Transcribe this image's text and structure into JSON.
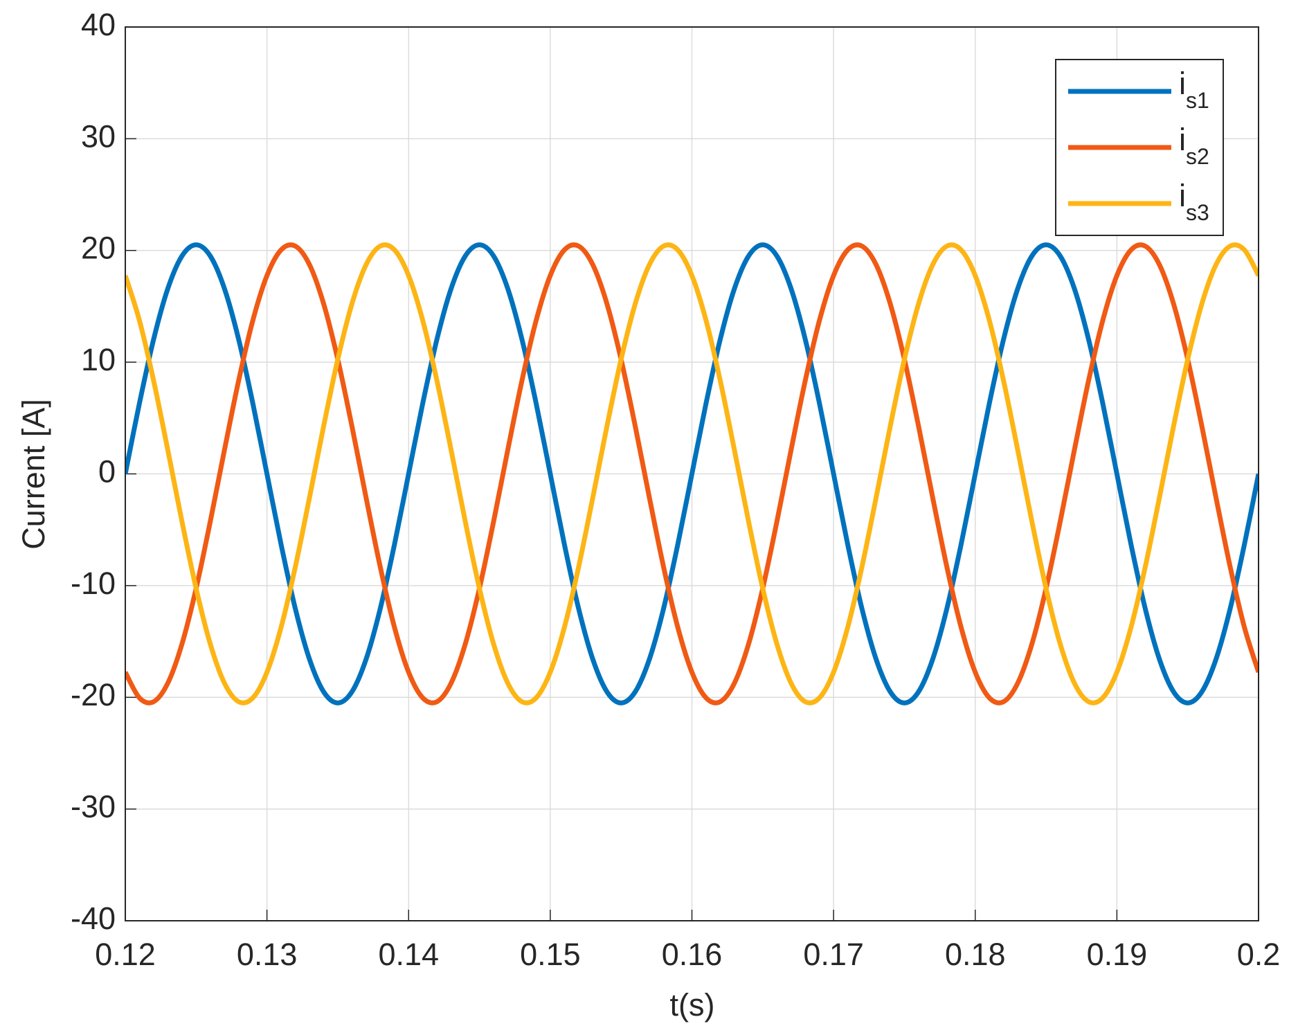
{
  "chart_data": {
    "type": "line",
    "xlabel": "t(s)",
    "ylabel": "Current [A]",
    "xlim": [
      0.12,
      0.2
    ],
    "ylim": [
      -40,
      40
    ],
    "xticks": [
      0.12,
      0.13,
      0.14,
      0.15,
      0.16,
      0.17,
      0.18,
      0.19,
      0.2
    ],
    "yticks": [
      -40,
      -30,
      -20,
      -10,
      0,
      10,
      20,
      30,
      40
    ],
    "grid": true,
    "legend": "top-right",
    "x": [
      0.12,
      0.121,
      0.122,
      0.123,
      0.124,
      0.125,
      0.126,
      0.127,
      0.128,
      0.129,
      0.13,
      0.131,
      0.132,
      0.133,
      0.134,
      0.135,
      0.136,
      0.137,
      0.138,
      0.139,
      0.14,
      0.141,
      0.142,
      0.143,
      0.144,
      0.145,
      0.146,
      0.147,
      0.148,
      0.149,
      0.15,
      0.151,
      0.152,
      0.153,
      0.154,
      0.155,
      0.156,
      0.157,
      0.158,
      0.159,
      0.16,
      0.161,
      0.162,
      0.163,
      0.164,
      0.165,
      0.166,
      0.167,
      0.168,
      0.169,
      0.17,
      0.171,
      0.172,
      0.173,
      0.174,
      0.175,
      0.176,
      0.177,
      0.178,
      0.179,
      0.18,
      0.181,
      0.182,
      0.183,
      0.184,
      0.185,
      0.186,
      0.187,
      0.188,
      0.189,
      0.19,
      0.191,
      0.192,
      0.193,
      0.194,
      0.195,
      0.196,
      0.197,
      0.198,
      0.199,
      0.2
    ],
    "series": [
      {
        "name": "is1",
        "color": "#0072bd",
        "values": [
          0,
          6.33,
          12.05,
          16.58,
          19.5,
          20.5,
          19.5,
          16.58,
          12.05,
          6.33,
          0,
          -6.33,
          -12.05,
          -16.58,
          -19.5,
          -20.5,
          -19.5,
          -16.58,
          -12.05,
          -6.33,
          0,
          6.33,
          12.05,
          16.58,
          19.5,
          20.5,
          19.5,
          16.58,
          12.05,
          6.33,
          0,
          -6.33,
          -12.05,
          -16.58,
          -19.5,
          -20.5,
          -19.5,
          -16.58,
          -12.05,
          -6.33,
          0,
          6.33,
          12.05,
          16.58,
          19.5,
          20.5,
          19.5,
          16.58,
          12.05,
          6.33,
          0,
          -6.33,
          -12.05,
          -16.58,
          -19.5,
          -20.5,
          -19.5,
          -16.58,
          -12.05,
          -6.33,
          0,
          6.33,
          12.05,
          16.58,
          19.5,
          20.5,
          19.5,
          16.58,
          12.05,
          6.33,
          0,
          -6.33,
          -12.05,
          -16.58,
          -19.5,
          -20.5,
          -19.5,
          -16.58,
          -12.05,
          -6.33,
          0
        ]
      },
      {
        "name": "is2",
        "color": "#f05a14",
        "values": [
          -17.75,
          -20.05,
          -20.39,
          -18.73,
          -15.23,
          -10.25,
          -4.26,
          2.14,
          8.34,
          13.72,
          17.75,
          20.05,
          20.39,
          18.73,
          15.23,
          10.25,
          4.26,
          -2.14,
          -8.34,
          -13.72,
          -17.75,
          -20.05,
          -20.39,
          -18.73,
          -15.23,
          -10.25,
          -4.26,
          2.14,
          8.34,
          13.72,
          17.75,
          20.05,
          20.39,
          18.73,
          15.23,
          10.25,
          4.26,
          -2.14,
          -8.34,
          -13.72,
          -17.75,
          -20.05,
          -20.39,
          -18.73,
          -15.23,
          -10.25,
          -4.26,
          2.14,
          8.34,
          13.72,
          17.75,
          20.05,
          20.39,
          18.73,
          15.23,
          10.25,
          4.26,
          -2.14,
          -8.34,
          -13.72,
          -17.75,
          -20.05,
          -20.39,
          -18.73,
          -15.23,
          -10.25,
          -4.26,
          2.14,
          8.34,
          13.72,
          17.75,
          20.05,
          20.39,
          18.73,
          15.23,
          10.25,
          4.26,
          -2.14,
          -8.34,
          -13.72,
          -17.75
        ]
      },
      {
        "name": "is3",
        "color": "#fdb515",
        "values": [
          17.75,
          13.72,
          8.34,
          2.14,
          -4.26,
          -10.25,
          -15.23,
          -18.73,
          -20.39,
          -20.05,
          -17.75,
          -13.72,
          -8.34,
          -2.14,
          4.26,
          10.25,
          15.23,
          18.73,
          20.39,
          20.05,
          17.75,
          13.72,
          8.34,
          2.14,
          -4.26,
          -10.25,
          -15.23,
          -18.73,
          -20.39,
          -20.05,
          -17.75,
          -13.72,
          -8.34,
          -2.14,
          4.26,
          10.25,
          15.23,
          18.73,
          20.39,
          20.05,
          17.75,
          13.72,
          8.34,
          2.14,
          -4.26,
          -10.25,
          -15.23,
          -18.73,
          -20.39,
          -20.05,
          -17.75,
          -13.72,
          -8.34,
          -2.14,
          4.26,
          10.25,
          15.23,
          18.73,
          20.39,
          20.05,
          17.75,
          13.72,
          8.34,
          2.14,
          -4.26,
          -10.25,
          -15.23,
          -18.73,
          -20.39,
          -20.05,
          -17.75,
          -13.72,
          -8.34,
          -2.14,
          4.26,
          10.25,
          15.23,
          18.73,
          20.39,
          20.05,
          17.75
        ]
      }
    ]
  }
}
